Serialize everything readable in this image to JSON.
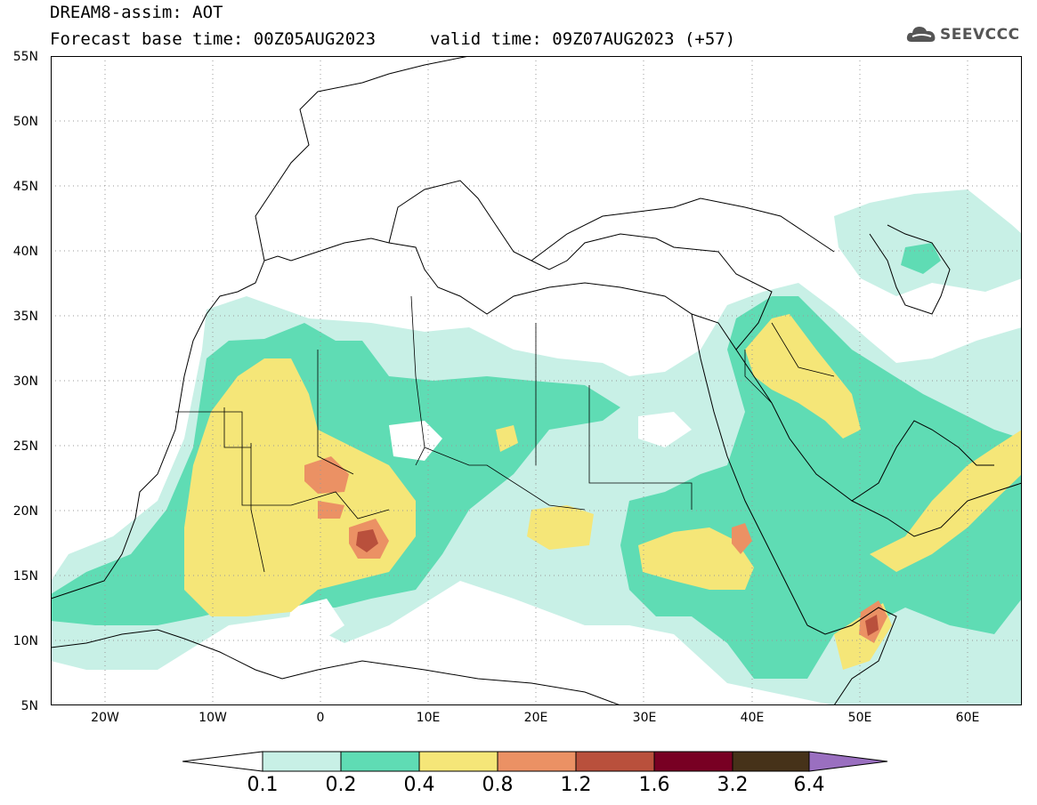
{
  "title": {
    "line1": "DREAM8-assim: AOT",
    "line2": "Forecast base time: 00Z05AUG2023",
    "valid": "valid time: 09Z07AUG2023 (+57)"
  },
  "logo": {
    "text": "SEEVCCC",
    "icon": "cloud-icon"
  },
  "map": {
    "lon_range": [
      -25,
      65
    ],
    "lat_range": [
      5,
      55
    ],
    "lat_labels": [
      "55N",
      "50N",
      "45N",
      "40N",
      "35N",
      "30N",
      "25N",
      "20N",
      "15N",
      "10N",
      "5N"
    ],
    "lon_labels": [
      "20W",
      "10W",
      "0",
      "10E",
      "20E",
      "30E",
      "40E",
      "50E",
      "60E"
    ],
    "grid": "dotted"
  },
  "colorbar": {
    "labels": [
      "0.1",
      "0.2",
      "0.4",
      "0.8",
      "1.2",
      "1.6",
      "3.2",
      "6.4"
    ],
    "colors": [
      "#c8f0e6",
      "#5fdcb4",
      "#f5e678",
      "#eb9164",
      "#b9503c",
      "#780023",
      "#463219",
      "#9a6fc0"
    ]
  }
}
